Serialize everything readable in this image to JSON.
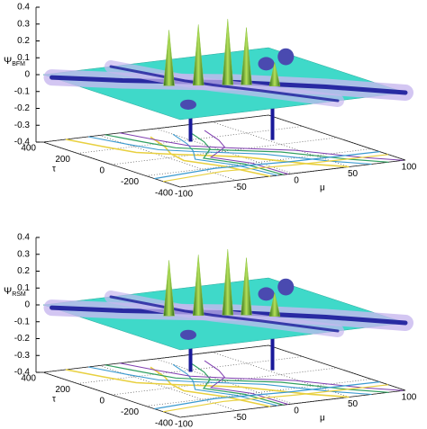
{
  "chart_data": [
    {
      "type": "surface3d",
      "zlabel_symbol": "Ψ",
      "zlabel_subscript": "BFM",
      "zlim": [
        -0.4,
        0.4
      ],
      "zticks": [
        0.4,
        0.3,
        0.2,
        0.1,
        0,
        -0.1,
        -0.2,
        -0.3,
        -0.4
      ],
      "ylabel": "τ",
      "ylim": [
        -400,
        400
      ],
      "yticks": [
        400,
        200,
        0,
        -200,
        -400
      ],
      "xlabel": "μ",
      "xlim": [
        -100,
        100
      ],
      "xticks": [
        -100,
        -50,
        0,
        50,
        100
      ],
      "grid": true,
      "surface_color": "#3fd9c9",
      "peak_color": "#8cc43c",
      "ridge_color": "#1a1a9a"
    },
    {
      "type": "surface3d",
      "zlabel_symbol": "Ψ",
      "zlabel_subscript": "RSM",
      "zlim": [
        -0.4,
        0.4
      ],
      "zticks": [
        0.4,
        0.3,
        0.2,
        0.1,
        0,
        -0.1,
        -0.2,
        -0.3,
        -0.4
      ],
      "ylabel": "τ",
      "ylim": [
        -400,
        400
      ],
      "yticks": [
        400,
        200,
        0,
        -200,
        -400
      ],
      "xlabel": "μ",
      "xlim": [
        -100,
        100
      ],
      "xticks": [
        -100,
        -50,
        0,
        50,
        100
      ],
      "grid": true,
      "surface_color": "#3fd9c9",
      "peak_color": "#8cc43c",
      "ridge_color": "#1a1a9a"
    }
  ]
}
